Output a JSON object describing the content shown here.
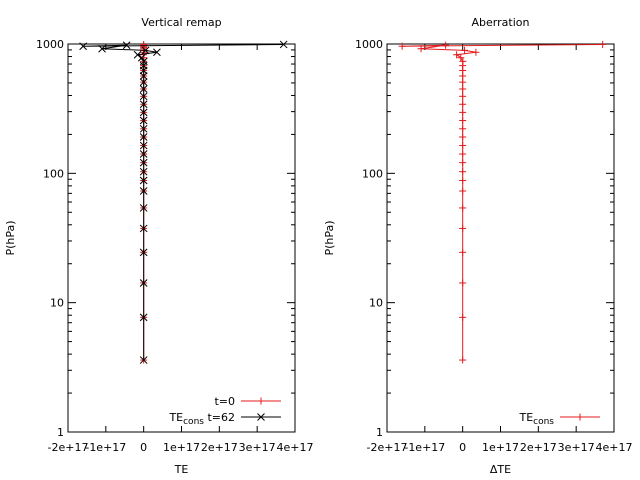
{
  "chart_data": [
    {
      "type": "line",
      "title": "Vertical remap",
      "xlabel": "TE",
      "ylabel": "P(hPa)",
      "xlim": [
        -2e+17,
        4e+17
      ],
      "ylim": [
        1,
        1000
      ],
      "yscale": "log",
      "grid": false,
      "legend_position": "bottom-right",
      "xtick_values": [
        -2e+17,
        -1e+17,
        0,
        1e+17,
        2e+17,
        3e+17,
        4e+17
      ],
      "xtick_labels": [
        "-2e+17",
        "-1e+17",
        "0",
        "1e+17",
        "2e+17",
        "3e+17",
        "4e+17"
      ],
      "ytick_values": [
        1,
        10,
        100,
        1000
      ],
      "ytick_labels": [
        "1",
        "10",
        "100",
        "1000"
      ],
      "series": [
        {
          "name": "t=0",
          "legend_label": "t=0",
          "color": "#e41a1c",
          "marker": "plus",
          "points": [
            [
              0,
              3.6
            ],
            [
              0,
              7.7
            ],
            [
              0,
              14.2
            ],
            [
              0,
              24.5
            ],
            [
              0,
              37.5
            ],
            [
              0,
              54
            ],
            [
              0,
              73
            ],
            [
              0,
              88
            ],
            [
              0,
              103
            ],
            [
              0,
              121
            ],
            [
              0,
              141
            ],
            [
              0,
              164
            ],
            [
              0,
              191
            ],
            [
              0,
              221
            ],
            [
              0,
              256
            ],
            [
              0,
              296
            ],
            [
              0,
              342
            ],
            [
              0,
              394
            ],
            [
              0,
              449
            ],
            [
              0,
              507
            ],
            [
              0,
              566
            ],
            [
              0,
              624
            ],
            [
              0,
              680
            ],
            [
              0,
              734
            ],
            [
              0,
              783
            ],
            [
              0,
              826
            ],
            [
              0,
              863
            ],
            [
              0,
              893
            ],
            [
              0,
              919
            ],
            [
              0,
              941
            ],
            [
              0,
              961
            ],
            [
              0,
              978
            ],
            [
              0,
              992
            ]
          ]
        },
        {
          "name": "TE_cons t=62",
          "legend_prefix": "TE",
          "legend_subscript": "cons",
          "legend_suffix": " t=62",
          "color": "#000000",
          "marker": "cross",
          "points": [
            [
              0,
              3.6
            ],
            [
              0,
              7.7
            ],
            [
              0,
              14.2
            ],
            [
              0,
              24.5
            ],
            [
              0,
              37.5
            ],
            [
              0,
              54
            ],
            [
              0,
              73
            ],
            [
              0,
              88
            ],
            [
              0,
              103
            ],
            [
              0,
              121
            ],
            [
              0,
              141
            ],
            [
              0,
              164
            ],
            [
              0,
              191
            ],
            [
              0,
              221
            ],
            [
              0,
              256
            ],
            [
              0,
              296
            ],
            [
              0,
              342
            ],
            [
              0,
              394
            ],
            [
              0,
              449
            ],
            [
              0,
              507
            ],
            [
              0,
              566
            ],
            [
              0,
              624
            ],
            [
              0,
              680
            ],
            [
              500000000000000.0,
              734
            ],
            [
              -5000000000000000.0,
              783
            ],
            [
              -1.6e+16,
              826
            ],
            [
              3.5e+16,
              863
            ],
            [
              5000000000000000.0,
              893
            ],
            [
              -1.1e+17,
              919
            ],
            [
              -4.5e+16,
              978
            ],
            [
              -1.6e+17,
              961
            ],
            [
              3.7e+17,
              992
            ]
          ]
        }
      ]
    },
    {
      "type": "line",
      "title": "Aberration",
      "xlabel": "ΔTE",
      "ylabel": "P(hPa)",
      "xlim": [
        -2e+17,
        4e+17
      ],
      "ylim": [
        1,
        1000
      ],
      "yscale": "log",
      "grid": false,
      "legend_position": "bottom-right",
      "xtick_values": [
        -2e+17,
        -1e+17,
        0,
        1e+17,
        2e+17,
        3e+17,
        4e+17
      ],
      "xtick_labels": [
        "-2e+17",
        "-1e+17",
        "0",
        "1e+17",
        "2e+17",
        "3e+17",
        "4e+17"
      ],
      "ytick_values": [
        1,
        10,
        100,
        1000
      ],
      "ytick_labels": [
        "1",
        "10",
        "100",
        "1000"
      ],
      "series": [
        {
          "name": "TE_cons",
          "legend_prefix": "TE",
          "legend_subscript": "cons",
          "legend_suffix": "",
          "color": "#e41a1c",
          "marker": "plus",
          "points": [
            [
              0,
              3.6
            ],
            [
              0,
              7.7
            ],
            [
              0,
              14.2
            ],
            [
              0,
              24.5
            ],
            [
              0,
              37.5
            ],
            [
              0,
              54
            ],
            [
              0,
              73
            ],
            [
              0,
              88
            ],
            [
              0,
              103
            ],
            [
              0,
              121
            ],
            [
              0,
              141
            ],
            [
              0,
              164
            ],
            [
              0,
              191
            ],
            [
              0,
              221
            ],
            [
              0,
              256
            ],
            [
              0,
              296
            ],
            [
              0,
              342
            ],
            [
              0,
              394
            ],
            [
              0,
              449
            ],
            [
              0,
              507
            ],
            [
              0,
              566
            ],
            [
              0,
              624
            ],
            [
              0,
              680
            ],
            [
              500000000000000.0,
              734
            ],
            [
              -5000000000000000.0,
              783
            ],
            [
              -1.6e+16,
              826
            ],
            [
              3.5e+16,
              863
            ],
            [
              5000000000000000.0,
              893
            ],
            [
              -1.1e+17,
              919
            ],
            [
              -4.5e+16,
              978
            ],
            [
              -1.6e+17,
              961
            ],
            [
              3.7e+17,
              992
            ]
          ]
        }
      ]
    }
  ]
}
